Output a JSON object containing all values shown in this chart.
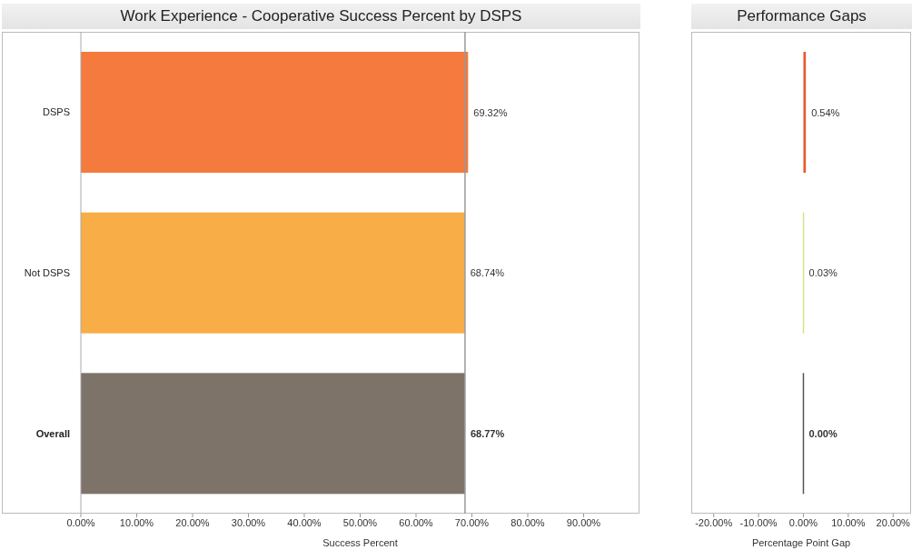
{
  "chart_data": [
    {
      "type": "bar",
      "orientation": "horizontal",
      "title": "Work Experience - Cooperative Success Percent by DSPS",
      "xlabel": "Success Percent",
      "categories": [
        "DSPS",
        "Not DSPS",
        "Overall"
      ],
      "values": [
        69.32,
        68.74,
        68.77
      ],
      "colors": [
        "#f47a3e",
        "#f8ad46",
        "#7e7368"
      ],
      "value_labels": [
        "69.32%",
        "68.74%",
        "68.77%"
      ],
      "xlim": [
        0,
        100
      ],
      "xticks": [
        {
          "value": 0,
          "label": "0.00%"
        },
        {
          "value": 10,
          "label": "10.00%"
        },
        {
          "value": 20,
          "label": "20.00%"
        },
        {
          "value": 30,
          "label": "30.00%"
        },
        {
          "value": 40,
          "label": "40.00%"
        },
        {
          "value": 50,
          "label": "50.00%"
        },
        {
          "value": 60,
          "label": "60.00%"
        },
        {
          "value": 70,
          "label": "70.00%"
        },
        {
          "value": 80,
          "label": "80.00%"
        },
        {
          "value": 90,
          "label": "90.00%"
        }
      ],
      "ref_lines": [
        {
          "axis": "x",
          "value": 68.77,
          "color": "#999999"
        }
      ],
      "grid": false,
      "legend": false
    },
    {
      "type": "bar",
      "orientation": "horizontal",
      "title": "Performance Gaps",
      "xlabel": "Percentage Point Gap",
      "categories": [
        null,
        null,
        null
      ],
      "values": [
        0.54,
        0.03,
        0
      ],
      "colors": [
        "#e85a2a",
        "#d8e08c",
        "#555555"
      ],
      "value_labels": [
        "0.54%",
        "0.03%",
        "0.00%"
      ],
      "xlim": [
        -25,
        24
      ],
      "xticks": [
        {
          "value": -20,
          "label": "-20.00%"
        },
        {
          "value": -10,
          "label": "-10.00%"
        },
        {
          "value": 0,
          "label": "0.00%"
        },
        {
          "value": 10,
          "label": "10.00%"
        },
        {
          "value": 20,
          "label": "20.00%"
        }
      ],
      "tick_labels": "x",
      "grid": false,
      "legend": false
    }
  ]
}
